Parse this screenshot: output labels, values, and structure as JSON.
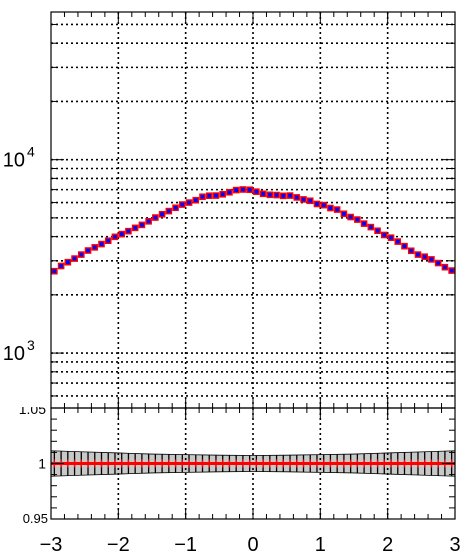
{
  "chart_data": [
    {
      "type": "scatter",
      "title": "",
      "xlabel": "",
      "ylabel": "",
      "log_y": true,
      "grid": true,
      "xlim": [
        -3,
        3
      ],
      "ylim": [
        520,
        58000
      ],
      "y_tick_labels": [
        {
          "value": 1000,
          "base": "10",
          "exp": "3"
        },
        {
          "value": 10000,
          "base": "10",
          "exp": "4"
        }
      ],
      "series": [
        {
          "marker": "square",
          "x": [
            -2.95,
            -2.85,
            -2.75,
            -2.65,
            -2.55,
            -2.45,
            -2.35,
            -2.25,
            -2.15,
            -2.05,
            -1.95,
            -1.85,
            -1.75,
            -1.65,
            -1.55,
            -1.45,
            -1.35,
            -1.25,
            -1.15,
            -1.05,
            -0.95,
            -0.85,
            -0.75,
            -0.65,
            -0.55,
            -0.45,
            -0.35,
            -0.25,
            -0.15,
            -0.05,
            0.05,
            0.15,
            0.25,
            0.35,
            0.45,
            0.55,
            0.65,
            0.75,
            0.85,
            0.95,
            1.05,
            1.15,
            1.25,
            1.35,
            1.45,
            1.55,
            1.65,
            1.75,
            1.85,
            1.95,
            2.05,
            2.15,
            2.25,
            2.35,
            2.45,
            2.55,
            2.65,
            2.75,
            2.85,
            2.95
          ],
          "y": [
            2650,
            2820,
            2950,
            3080,
            3230,
            3390,
            3520,
            3660,
            3810,
            3990,
            4120,
            4270,
            4440,
            4600,
            4800,
            5020,
            5220,
            5420,
            5640,
            5860,
            6000,
            6170,
            6430,
            6510,
            6520,
            6620,
            6780,
            6960,
            7010,
            6990,
            6830,
            6660,
            6580,
            6560,
            6500,
            6520,
            6380,
            6230,
            6130,
            5900,
            5820,
            5620,
            5520,
            5250,
            5050,
            4900,
            4670,
            4480,
            4290,
            4080,
            3950,
            3770,
            3570,
            3380,
            3230,
            3150,
            3050,
            2920,
            2780,
            2670
          ]
        }
      ]
    },
    {
      "type": "line",
      "xlabel": "",
      "ylabel": "",
      "xlim": [
        -3,
        3
      ],
      "ylim": [
        0.95,
        1.05
      ],
      "grid": true,
      "x_tick_labels": [
        "−3",
        "−2",
        "−1",
        "0",
        "1",
        "2",
        "3"
      ],
      "y_tick_labels": [
        "0.95",
        "1",
        "1.05"
      ],
      "series": [
        {
          "line_color": "#ff0000",
          "band_color": "#c8c8c8",
          "x": [
            -3,
            -2.5,
            -2,
            -1.5,
            -1,
            -0.5,
            0,
            0.5,
            1,
            1.5,
            2,
            2.5,
            3
          ],
          "ratio": [
            1,
            1,
            1,
            1,
            1,
            1,
            1,
            1,
            1,
            1,
            1,
            1,
            1
          ],
          "uncertainty": [
            0.0115,
            0.0105,
            0.0095,
            0.0085,
            0.008,
            0.0075,
            0.0072,
            0.0075,
            0.008,
            0.0085,
            0.0095,
            0.0105,
            0.0115
          ]
        }
      ]
    }
  ],
  "colors": {
    "marker_fill": "#0000ff",
    "marker_edge": "#ff0000",
    "ratio_line": "#ff0000",
    "band_fill": "#c8c8c8",
    "grid": "#000000"
  }
}
